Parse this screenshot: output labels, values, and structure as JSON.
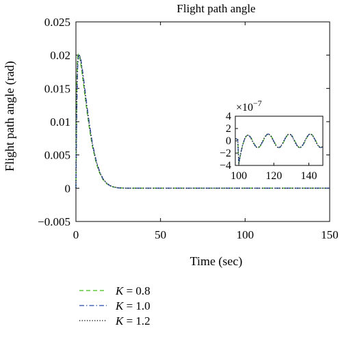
{
  "chart_data": {
    "type": "line",
    "title": "Flight path angle",
    "xlabel": "Time (sec)",
    "ylabel": "Flight path angle (rad)",
    "xlim": [
      0,
      150
    ],
    "ylim": [
      -0.005,
      0.025
    ],
    "xticks": [
      0,
      50,
      100,
      150
    ],
    "yticks": [
      -0.005,
      0,
      0.005,
      0.01,
      0.015,
      0.02,
      0.025
    ],
    "xtick_labels": [
      "0",
      "50",
      "100",
      "150"
    ],
    "ytick_labels": [
      "−0.005",
      "0",
      "0.005",
      "0.01",
      "0.015",
      "0.02",
      "0.025"
    ],
    "grid": false,
    "legend_position": "below",
    "series": [
      {
        "name": "K = 0.8",
        "legend_var": "K",
        "legend_value": "0.8",
        "color": "#5fc93a",
        "style": "dashed",
        "x": [
          0,
          0.5,
          1,
          1.5,
          2,
          2.5,
          3,
          4,
          5,
          6,
          7,
          8,
          9,
          10,
          12,
          14,
          16,
          18,
          20,
          22,
          25,
          30,
          40,
          60,
          100,
          150
        ],
        "y": [
          0,
          0.016,
          0.0198,
          0.0201,
          0.0199,
          0.0193,
          0.0185,
          0.0166,
          0.0146,
          0.0126,
          0.0107,
          0.009,
          0.0074,
          0.006,
          0.0038,
          0.0023,
          0.0013,
          0.0007,
          0.0004,
          0.0002,
          5e-05,
          0,
          0,
          0,
          0,
          0
        ]
      },
      {
        "name": "K = 1.0",
        "legend_var": "K",
        "legend_value": "1.0",
        "color": "#4a67b8",
        "style": "dashdot",
        "x": [
          0,
          0.5,
          1,
          1.5,
          2,
          2.5,
          3,
          4,
          5,
          6,
          7,
          8,
          9,
          10,
          12,
          14,
          16,
          18,
          20,
          22,
          25,
          30,
          40,
          60,
          100,
          150
        ],
        "y": [
          0,
          0.012,
          0.0182,
          0.0198,
          0.0201,
          0.0198,
          0.0192,
          0.0175,
          0.0155,
          0.0134,
          0.0114,
          0.0096,
          0.0079,
          0.0064,
          0.0041,
          0.0025,
          0.0014,
          0.0008,
          0.0004,
          0.0002,
          5e-05,
          0,
          0,
          0,
          0,
          0
        ]
      },
      {
        "name": "K = 1.2",
        "legend_var": "K",
        "legend_value": "1.2",
        "color": "#111111",
        "style": "dotted",
        "x": [
          0,
          0.5,
          1,
          1.5,
          2,
          2.5,
          3,
          4,
          5,
          6,
          7,
          8,
          9,
          10,
          12,
          14,
          16,
          18,
          20,
          22,
          25,
          30,
          40,
          60,
          100,
          150
        ],
        "y": [
          0,
          0.014,
          0.019,
          0.02,
          0.02,
          0.0196,
          0.0189,
          0.0171,
          0.0151,
          0.013,
          0.0111,
          0.0093,
          0.0077,
          0.0062,
          0.004,
          0.0024,
          0.0014,
          0.0008,
          0.0004,
          0.0002,
          5e-05,
          0,
          0,
          0,
          0,
          0
        ]
      }
    ],
    "inset": {
      "xlim": [
        98,
        148
      ],
      "ylim": [
        -4,
        4
      ],
      "xticks": [
        100,
        120,
        140
      ],
      "yticks": [
        -4,
        -2,
        0,
        2,
        4
      ],
      "xtick_labels": [
        "100",
        "120",
        "140"
      ],
      "ytick_labels": [
        "−4",
        "−2",
        "0",
        "2",
        "4"
      ],
      "scale_base": "×10",
      "scale_exponent": "−7",
      "curve": {
        "start_x": 98,
        "dip_x": 100,
        "dip_y": -3.8,
        "amplitude": 1.1,
        "period": 12,
        "mean": 0.0
      }
    }
  }
}
